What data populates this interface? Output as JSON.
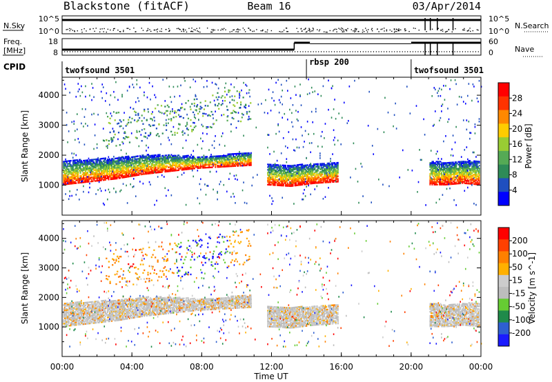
{
  "header": {
    "station": "Blackstone (fitACF)",
    "beam": "Beam 16",
    "date": "03/Apr/2014"
  },
  "nsky": {
    "label": "N.Sky",
    "ticks": [
      "10^5",
      "10^0"
    ],
    "right_label": "N.Search",
    "right_ticks": [
      "10^5",
      "10^0"
    ]
  },
  "freq": {
    "label_line1": "Freq.",
    "label_line2": "[MHz]",
    "ticks": [
      "18",
      "8"
    ],
    "right_label": "Nave",
    "right_ticks": [
      "60",
      "0"
    ]
  },
  "cpid": {
    "label": "CPID",
    "segments": [
      {
        "name": "twofsound 3501",
        "start_hr": 0,
        "end_hr": 14.0
      },
      {
        "name": "rbsp 200",
        "start_hr": 14.0,
        "end_hr": 20.0
      },
      {
        "name": "twofsound 3501",
        "start_hr": 20.0,
        "end_hr": 24.0
      }
    ]
  },
  "chart_data": [
    {
      "type": "heatmap",
      "name": "power",
      "ylabel": "Slant Range [km]",
      "ylim": [
        0,
        4600
      ],
      "yticks": [
        1000,
        2000,
        3000,
        4000
      ],
      "colorbar": {
        "label": "Power [dB]",
        "ticks": [
          4,
          8,
          12,
          16,
          20,
          24,
          28
        ],
        "range": [
          0,
          32
        ],
        "colors": [
          "#0000ff",
          "#1f4fbf",
          "#2e8b57",
          "#55aa55",
          "#99cc33",
          "#ffcc00",
          "#ff8800",
          "#ff3300",
          "#ff0000"
        ]
      },
      "echo_bands": [
        {
          "t0": 0.0,
          "t1": 10.8,
          "lower_km": [
            1000,
            1100,
            1200,
            1350,
            1450,
            1550,
            1600,
            1650
          ],
          "upper_km": [
            1800,
            1850,
            1900,
            2000,
            2000,
            1950,
            2000,
            2100
          ]
        },
        {
          "t0": 11.7,
          "t1": 15.8,
          "lower_km": [
            1000,
            950,
            1050,
            1100
          ],
          "upper_km": [
            1700,
            1650,
            1700,
            1750
          ]
        },
        {
          "t0": 21.0,
          "t1": 23.9,
          "lower_km": [
            1000,
            1000,
            1050,
            1000
          ],
          "upper_km": [
            1800,
            1750,
            1800,
            1800
          ]
        }
      ]
    },
    {
      "type": "heatmap",
      "name": "velocity",
      "ylabel": "Slant Range [km]",
      "ylim": [
        0,
        4600
      ],
      "yticks": [
        1000,
        2000,
        3000,
        4000
      ],
      "colorbar": {
        "label": "Velocity [m s^-1]",
        "ticks": [
          200,
          100,
          50,
          15,
          -15,
          -50,
          -100,
          -200
        ],
        "colors": [
          "#1a1aff",
          "#2e5fd0",
          "#1f8a4a",
          "#66cc33",
          "#bdbdbd",
          "#cccccc",
          "#ffb000",
          "#ff8000",
          "#ff4000",
          "#ff0000"
        ]
      }
    }
  ],
  "xaxis": {
    "label": "Time UT",
    "ticks": [
      "00:00",
      "04:00",
      "08:00",
      "12:00",
      "16:00",
      "20:00",
      "00:00"
    ],
    "range_hr": [
      0,
      24
    ]
  }
}
